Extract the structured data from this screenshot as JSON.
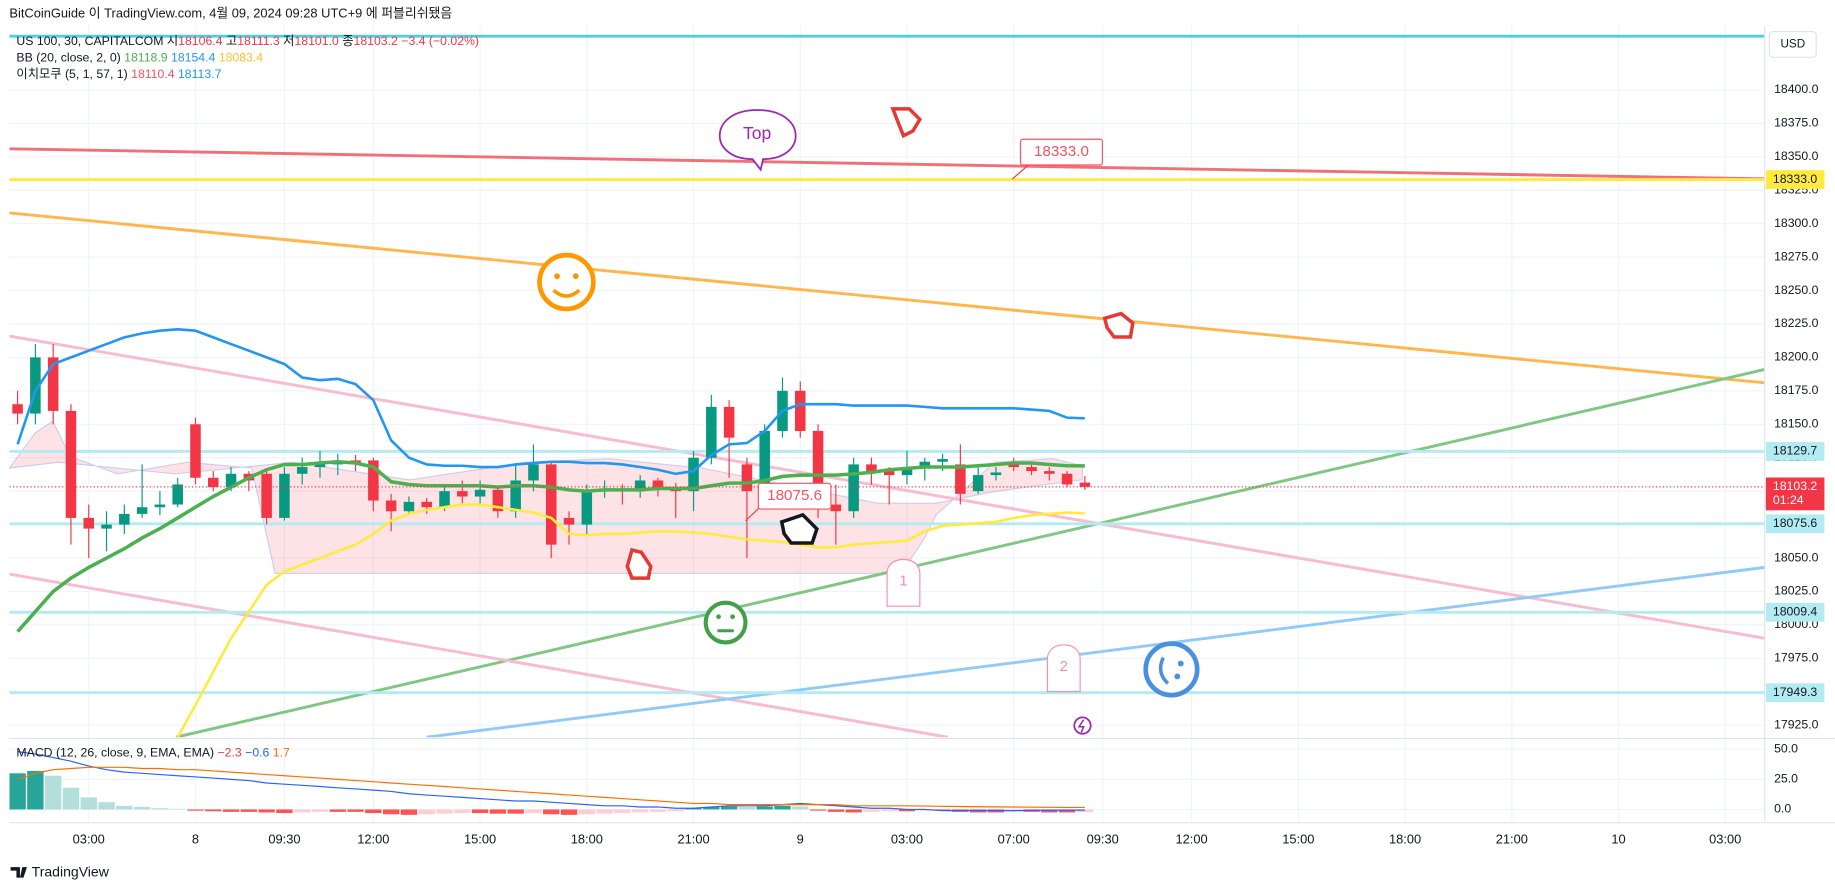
{
  "chart_data": {
    "type": "candlestick",
    "header": "BitCoinGuide 이 TradingView.com, 4월 09, 2024 09:28 UTC+9 에 퍼블리쉬됐음",
    "legend": {
      "symbol": "US 100, 30, CAPITALCOM",
      "o_label": "시",
      "o": "18106.4",
      "h_label": "고",
      "h": "18111.3",
      "l_label": "저",
      "l": "18101.0",
      "c_label": "종",
      "c": "18103.2",
      "change": "−3.4 (−0.02%)",
      "bb": "BB (20, close, 2, 0)",
      "bb_basis": "18118.9",
      "bb_upper": "18154.4",
      "bb_lower": "18083.4",
      "ichimoku": "이치모쿠 (5, 1, 57, 1)",
      "ichi_1": "18110.4",
      "ichi_2": "18113.7"
    },
    "currency": "USD",
    "footer": "TradingView",
    "up_color": "#089981",
    "down_color": "#f23645",
    "xlim": [
      -0.46,
      98.22
    ],
    "xticks": [
      {
        "value": 4,
        "label": "03:00"
      },
      {
        "value": 10,
        "label": "8"
      },
      {
        "value": 15,
        "label": "09:30"
      },
      {
        "value": 20,
        "label": "12:00"
      },
      {
        "value": 26,
        "label": "15:00"
      },
      {
        "value": 32,
        "label": "18:00"
      },
      {
        "value": 38,
        "label": "21:00"
      },
      {
        "value": 44,
        "label": "9"
      },
      {
        "value": 50,
        "label": "03:00"
      },
      {
        "value": 56,
        "label": "07:00"
      },
      {
        "value": 61,
        "label": "09:30"
      },
      {
        "value": 66,
        "label": "12:00"
      },
      {
        "value": 72,
        "label": "15:00"
      },
      {
        "value": 78,
        "label": "18:00"
      },
      {
        "value": 84,
        "label": "21:00"
      },
      {
        "value": 90,
        "label": "10"
      },
      {
        "value": 96,
        "label": "03:00"
      }
    ],
    "ylim": [
      17916,
      18448
    ],
    "yticks": [
      {
        "value": 18400,
        "label": "18400.0"
      },
      {
        "value": 18375,
        "label": "18375.0"
      },
      {
        "value": 18350,
        "label": "18350.0"
      },
      {
        "value": 18325,
        "label": "18325.0"
      },
      {
        "value": 18300,
        "label": "18300.0"
      },
      {
        "value": 18275,
        "label": "18275.0"
      },
      {
        "value": 18250,
        "label": "18250.0"
      },
      {
        "value": 18225,
        "label": "18225.0"
      },
      {
        "value": 18200,
        "label": "18200.0"
      },
      {
        "value": 18175,
        "label": "18175.0"
      },
      {
        "value": 18150,
        "label": "18150.0"
      },
      {
        "value": 18125,
        "label": "18125.0"
      },
      {
        "value": 18100,
        "label": "18100.0"
      },
      {
        "value": 18075,
        "label": "18075.0"
      },
      {
        "value": 18050,
        "label": "18050.0"
      },
      {
        "value": 18025,
        "label": "18025.0"
      },
      {
        "value": 18000,
        "label": "18000.0"
      },
      {
        "value": 17975,
        "label": "17975.0"
      },
      {
        "value": 17950,
        "label": "17950.0"
      },
      {
        "value": 17925,
        "label": "17925.0"
      }
    ],
    "grid": true,
    "ohlc": {
      "open": [
        18165,
        18158,
        18200,
        18160,
        18080,
        18072,
        18075,
        18083,
        18088,
        18090,
        18150,
        18110,
        18103,
        18113,
        18113,
        18080,
        18113,
        18118,
        18120,
        18123,
        18123,
        18093,
        18085,
        18092,
        18088,
        18100,
        18096,
        18101,
        18085,
        18108,
        18120,
        18080,
        18075,
        18100,
        18102,
        18100,
        18108,
        18103,
        18100,
        18125,
        18163,
        18120,
        18100,
        18145,
        18175,
        18145,
        18090,
        18085,
        18120,
        18115,
        18112,
        18117,
        18122,
        18120,
        18100,
        18112,
        18122,
        18118,
        18115,
        18113,
        18106.4
      ],
      "high": [
        18175,
        18210,
        18210,
        18165,
        18090,
        18085,
        18090,
        18120,
        18100,
        18110,
        18155,
        18115,
        18118,
        18115,
        18115,
        18118,
        18125,
        18130,
        18128,
        18127,
        18125,
        18098,
        18096,
        18095,
        18103,
        18108,
        18108,
        18104,
        18120,
        18135,
        18122,
        18085,
        18105,
        18108,
        18105,
        18112,
        18110,
        18106,
        18130,
        18172,
        18168,
        18125,
        18150,
        18185,
        18182,
        18150,
        18105,
        18125,
        18125,
        18118,
        18130,
        18125,
        18128,
        18135,
        18118,
        18118,
        18125,
        18120,
        18118,
        18115,
        18111.3
      ],
      "low": [
        18150,
        18150,
        18150,
        18060,
        18050,
        18055,
        18068,
        18080,
        18082,
        18088,
        18105,
        18100,
        18100,
        18100,
        18075,
        18078,
        18105,
        18110,
        18112,
        18115,
        18085,
        18070,
        18082,
        18083,
        18085,
        18090,
        18090,
        18080,
        18080,
        18100,
        18050,
        18060,
        18068,
        18095,
        18090,
        18095,
        18096,
        18080,
        18085,
        18120,
        18110,
        18050,
        18095,
        18140,
        18140,
        18080,
        18060,
        18080,
        18105,
        18090,
        18105,
        18108,
        18115,
        18090,
        18098,
        18108,
        18115,
        18112,
        18108,
        18103,
        18101
      ],
      "close": [
        18158,
        18200,
        18160,
        18080,
        18072,
        18075,
        18083,
        18088,
        18090,
        18105,
        18110,
        18103,
        18113,
        18108,
        18080,
        18113,
        18118,
        18122,
        18122,
        18121,
        18093,
        18085,
        18092,
        18088,
        18100,
        18096,
        18101,
        18085,
        18108,
        18120,
        18060,
        18075,
        18100,
        18102,
        18100,
        18108,
        18103,
        18100,
        18125,
        18163,
        18140,
        18100,
        18145,
        18175,
        18145,
        18090,
        18085,
        18120,
        18115,
        18112,
        18117,
        18122,
        18124,
        18098,
        18112,
        18114,
        18118,
        18115,
        18113,
        18105,
        18103.2
      ]
    },
    "bb": {
      "upper": {
        "color": "#2196f3",
        "values": [
          18135,
          18175,
          18195,
          18200,
          18205,
          18210,
          18215,
          18218,
          18220,
          18221,
          18220,
          18215,
          18210,
          18205,
          18200,
          18195,
          18185,
          18183,
          18184,
          18180,
          18168,
          18138,
          18125,
          18120,
          18119,
          18119,
          18118,
          18118,
          18120,
          18121,
          18122,
          18122,
          18121,
          18121,
          18120,
          18118,
          18116,
          18113,
          18115,
          18127,
          18135,
          18136,
          18145,
          18160,
          18165,
          18165,
          18165,
          18164,
          18164,
          18164,
          18164,
          18163,
          18162,
          18162,
          18162,
          18162,
          18162,
          18161,
          18160,
          18155,
          18154.4
        ]
      },
      "basis": {
        "color": "#4caf50",
        "values": [
          17995,
          18010,
          18025,
          18035,
          18043,
          18050,
          18057,
          18065,
          18072,
          18080,
          18088,
          18096,
          18103,
          18110,
          18116,
          18120,
          18120,
          18121,
          18122,
          18121,
          18118,
          18107,
          18105,
          18104,
          18104,
          18104,
          18104,
          18103,
          18104,
          18104,
          18103,
          18101,
          18100,
          18101,
          18101,
          18101,
          18102,
          18102,
          18102,
          18104,
          18106,
          18106,
          18108,
          18111,
          18112,
          18112,
          18112,
          18113,
          18114,
          18116,
          18117,
          18118,
          18118,
          18118,
          18119,
          18120,
          18121,
          18121,
          18120,
          18119,
          18118.9
        ]
      },
      "lower": {
        "color": "#ffeb3b",
        "values": [
          null,
          null,
          null,
          null,
          null,
          null,
          null,
          null,
          null,
          17916,
          17940,
          17965,
          17990,
          18010,
          18030,
          18040,
          18045,
          18050,
          18055,
          18060,
          18068,
          18078,
          18083,
          18086,
          18088,
          18090,
          18090,
          18088,
          18086,
          18084,
          18080,
          18068,
          18067,
          18068,
          18068,
          18069,
          18070,
          18070,
          18069,
          18068,
          18066,
          18064,
          18063,
          18062,
          18060,
          18058,
          18058,
          18060,
          18061,
          18062,
          18063,
          18070,
          18074,
          18075,
          18076,
          18077,
          18080,
          18082,
          18083,
          18084,
          18083.4
        ]
      }
    },
    "trendlines": [
      {
        "color": "#f07078",
        "x": [
          -0.46,
          98.22
        ],
        "y": [
          18356,
          18333.5
        ]
      },
      {
        "color": "#ffb74d",
        "x": [
          -0.46,
          98.22
        ],
        "y": [
          18308,
          18181
        ]
      },
      {
        "color": "#81c784",
        "x": [
          8.9,
          98.22
        ],
        "y": [
          17916,
          18191
        ]
      },
      {
        "color": "#f8bbd0",
        "x": [
          -0.46,
          98.22
        ],
        "y": [
          18216,
          17990
        ]
      },
      {
        "color": "#f8bbd0",
        "x": [
          -0.46,
          52.3
        ],
        "y": [
          18038,
          17916
        ]
      },
      {
        "color": "#90caf9",
        "x": [
          23,
          98.22
        ],
        "y": [
          17916,
          18043
        ]
      }
    ],
    "hlines": [
      {
        "value": 18440.2,
        "color": "#4dd0e1"
      },
      {
        "value": 18333,
        "label": "18333.0",
        "color": "#ffeb3b"
      },
      {
        "value": 18129.7,
        "label": "18129.7",
        "color": "#b2ebf2"
      },
      {
        "value": 18075.6,
        "label": "18075.6",
        "color": "#b2ebf2"
      },
      {
        "value": 18009.4,
        "label": "18009.4",
        "color": "#b2ebf2"
      },
      {
        "value": 17949.3,
        "label": "17949.3",
        "color": "#b2ebf2"
      }
    ],
    "last": {
      "value": 18103.2,
      "label": "18103.2",
      "countdown": "01:24",
      "color": "#f23645"
    },
    "annotations": {
      "top": "Top",
      "callout_high": "18333.0",
      "callout_low": "18075.6",
      "marker_1": "1",
      "marker_2": "2"
    },
    "macd": {
      "title": "MACD (12, 26, close, 9, EMA, EMA)",
      "hist_label": "−2.3",
      "macd_label": "−0.6",
      "signal_label": "1.7",
      "ylim": [
        -10,
        58
      ],
      "yticks": [
        {
          "value": 50,
          "label": "50.0"
        },
        {
          "value": 25,
          "label": "25.0"
        },
        {
          "value": 0,
          "label": "0.0"
        }
      ],
      "hist": [
        30,
        32,
        28,
        18,
        10,
        6,
        3,
        2,
        1,
        0.5,
        -1,
        -1.5,
        -2,
        -2,
        -2.5,
        -3,
        -2.5,
        -2,
        -2,
        -2,
        -3,
        -4,
        -4.5,
        -4,
        -3.5,
        -3,
        -3,
        -3.5,
        -3.5,
        -3,
        -4,
        -4.5,
        -4,
        -3.5,
        -3,
        -2.5,
        -2,
        -1.5,
        1,
        2,
        2.5,
        2,
        2.5,
        3,
        2.5,
        -1,
        -2,
        -2.5,
        -2,
        -1.5,
        -1.5,
        -1,
        -1,
        -2,
        -2.5,
        -2.5,
        -2,
        -2,
        -2.5,
        -2.5,
        -2.3
      ],
      "macd_line": {
        "color": "#2962ff",
        "values": [
          48,
          46,
          43,
          40,
          36,
          33,
          31,
          30,
          29,
          28,
          27,
          26,
          25,
          24,
          22,
          21,
          20,
          19,
          18,
          17,
          16,
          15,
          13,
          12,
          11,
          10,
          9,
          8,
          7,
          7,
          6,
          5,
          4,
          3,
          3,
          2,
          2,
          1,
          1,
          2,
          3,
          3,
          3,
          4,
          5,
          4,
          3,
          2,
          1,
          1,
          0,
          0,
          -1,
          -1,
          -1,
          -1,
          -1,
          -0.8,
          -0.7,
          -0.6,
          -0.6
        ]
      },
      "signal_line": {
        "color": "#ff6d00",
        "values": [
          25,
          30,
          33,
          34,
          35,
          35,
          35,
          34,
          34,
          33,
          33,
          32,
          31,
          30,
          29,
          28,
          27,
          26,
          25,
          24,
          23,
          22,
          21,
          20,
          19,
          18,
          17,
          16,
          15,
          14,
          13,
          12,
          11,
          10,
          9,
          8,
          7,
          6,
          5,
          5,
          4,
          4,
          4,
          4,
          4,
          4,
          4,
          3,
          3,
          3,
          3,
          2.8,
          2.6,
          2.4,
          2.2,
          2.1,
          2,
          1.9,
          1.8,
          1.7,
          1.7
        ]
      }
    }
  }
}
